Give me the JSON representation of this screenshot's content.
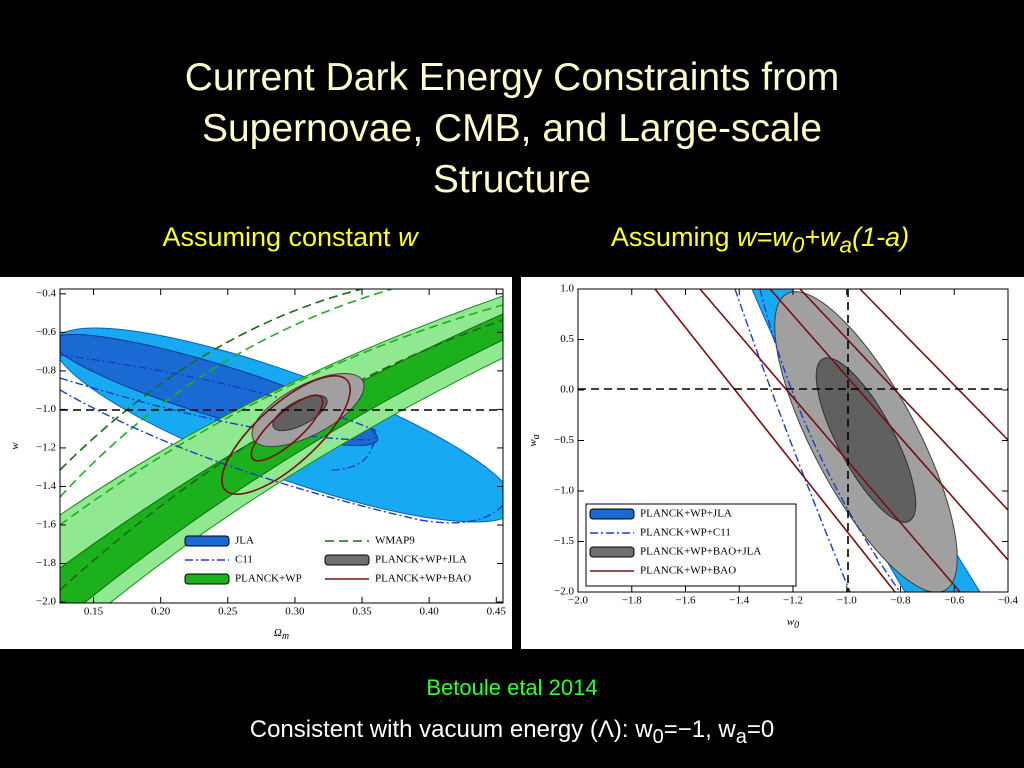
{
  "title_lines": [
    "Current Dark Energy Constraints from",
    "Supernovae, CMB, and Large-scale",
    "Structure"
  ],
  "subtitle_left": [
    "Assuming constant ",
    "w"
  ],
  "subtitle_right": [
    "Assuming ",
    "w=w",
    "0",
    "+w",
    "a",
    "(1-a)"
  ],
  "citation": "Betoule etal 2014",
  "caption": [
    "Consistent with vacuum energy (Λ): w",
    "0",
    "=−1, w",
    "a",
    "=0"
  ],
  "chart_data": [
    {
      "type": "contour",
      "xlabel": "Ω",
      "xlabel_sub": "m",
      "ylabel": "w",
      "xlim": [
        0.125,
        0.455
      ],
      "ylim": [
        -2.005,
        -0.375
      ],
      "xticks": [
        0.15,
        {
          "value": 0.2,
          "label": "0.20"
        },
        0.25,
        {
          "value": 0.3,
          "label": "0.30"
        },
        0.35,
        {
          "value": 0.4,
          "label": "0.40"
        },
        0.45
      ],
      "yticks": [
        {
          "value": -0.4,
          "label": "−0.4"
        },
        {
          "value": -0.6,
          "label": "−0.6"
        },
        {
          "value": -0.8,
          "label": "−0.8"
        },
        {
          "value": -1.0,
          "label": "−1.0"
        },
        {
          "value": -1.2,
          "label": "−1.2"
        },
        {
          "value": -1.4,
          "label": "−1.4"
        },
        {
          "value": -1.6,
          "label": "−1.6"
        },
        {
          "value": -1.8,
          "label": "−1.8"
        },
        {
          "value": -2.0,
          "label": "−2.0"
        }
      ],
      "legend_columns": 2,
      "series": [
        {
          "name": "JLA",
          "color": "#1a6ad4",
          "style": "filled"
        },
        {
          "name": "C11",
          "color": "#1a3cc8",
          "style": "dashdot"
        },
        {
          "name": "PLANCK+WP",
          "color": "#1cb01c",
          "style": "filled"
        },
        {
          "name": "WMAP9",
          "color": "#1a6a1a",
          "style": "dashed"
        },
        {
          "name": "PLANCK+WP+JLA",
          "color": "#707070",
          "style": "filled"
        },
        {
          "name": "PLANCK+WP+BAO",
          "color": "#7a1010",
          "style": "solid"
        }
      ]
    },
    {
      "type": "contour",
      "xlabel": "w",
      "xlabel_sub": "0",
      "ylabel": "w",
      "ylabel_sub": "a",
      "xlim": [
        -2.0,
        -0.4
      ],
      "ylim": [
        -2.0,
        1.0
      ],
      "xticks": [
        {
          "value": -2.0,
          "label": "−2.0"
        },
        {
          "value": -1.8,
          "label": "−1.8"
        },
        {
          "value": -1.6,
          "label": "−1.6"
        },
        {
          "value": -1.4,
          "label": "−1.4"
        },
        {
          "value": -1.2,
          "label": "−1.2"
        },
        {
          "value": -1.0,
          "label": "−1.0"
        },
        {
          "value": -0.8,
          "label": "−0.8"
        },
        {
          "value": -0.6,
          "label": "−0.6"
        },
        {
          "value": -0.4,
          "label": "−0.4"
        }
      ],
      "yticks": [
        {
          "value": 1.0,
          "label": "1.0"
        },
        0.5,
        {
          "value": 0.0,
          "label": "0.0"
        },
        {
          "value": -0.5,
          "label": "−0.5"
        },
        {
          "value": -1.0,
          "label": "−1.0"
        },
        {
          "value": -1.5,
          "label": "−1.5"
        },
        {
          "value": -2.0,
          "label": "−2.0"
        }
      ],
      "legend_columns": 1,
      "series": [
        {
          "name": "PLANCK+WP+JLA",
          "color": "#1a6ad4",
          "style": "filled"
        },
        {
          "name": "PLANCK+WP+C11",
          "color": "#1a3cc8",
          "style": "dashdot"
        },
        {
          "name": "PLANCK+WP+BAO+JLA",
          "color": "#707070",
          "style": "filled"
        },
        {
          "name": "PLANCK+WP+BAO",
          "color": "#7a1010",
          "style": "solid"
        }
      ]
    }
  ]
}
